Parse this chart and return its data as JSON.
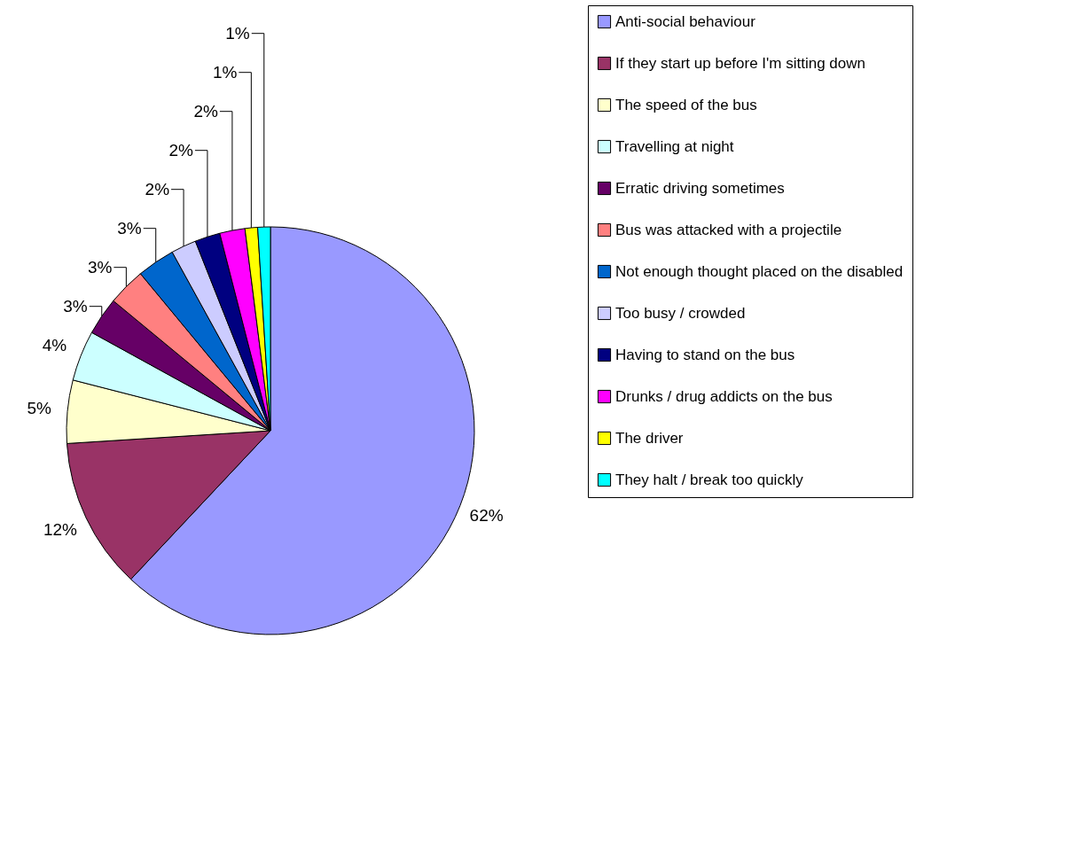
{
  "chart_data": {
    "type": "pie",
    "categories": [
      "Anti-social behaviour",
      "If they start up before I'm sitting down",
      "The speed of the bus",
      "Travelling at night",
      "Erratic driving sometimes",
      "Bus was attacked with a projectile",
      "Not enough thought placed on the disabled",
      "Too busy / crowded",
      "Having to stand on the bus",
      "Drunks / drug addicts on the bus",
      "The driver",
      "They halt / break too quickly"
    ],
    "values": [
      62,
      12,
      5,
      4,
      3,
      3,
      3,
      2,
      2,
      2,
      1,
      1
    ],
    "colors": [
      "#9999ff",
      "#993366",
      "#ffffcc",
      "#ccffff",
      "#660066",
      "#ff8080",
      "#0066cc",
      "#ccccff",
      "#000080",
      "#ff00ff",
      "#ffff00",
      "#00ffff"
    ],
    "value_labels": [
      "62%",
      "12%",
      "5%",
      "4%",
      "3%",
      "3%",
      "3%",
      "2%",
      "2%",
      "2%",
      "1%",
      "1%"
    ],
    "legend": "right"
  }
}
